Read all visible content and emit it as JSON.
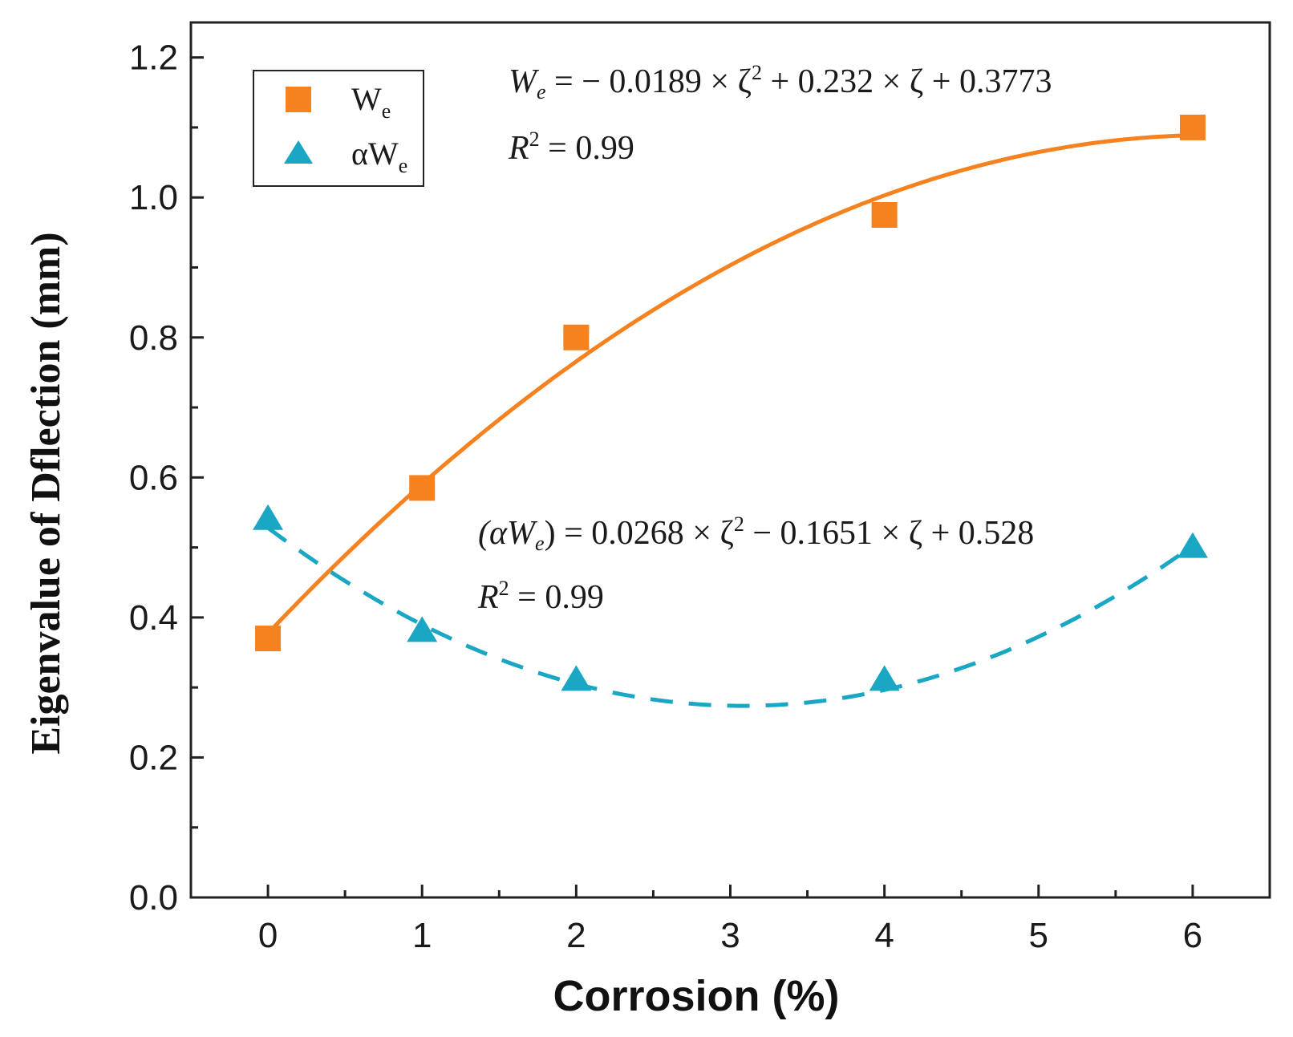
{
  "chart_data": {
    "type": "scatter",
    "title": "",
    "xlabel": "Corrosion (%)",
    "ylabel": "Eigenvalue of Dflection (mm)",
    "xlim": [
      -0.5,
      6.5
    ],
    "ylim": [
      0.0,
      1.25
    ],
    "x_ticks": [
      0,
      1,
      2,
      3,
      4,
      5,
      6
    ],
    "x_tick_labels": [
      "0",
      "1",
      "2",
      "3",
      "4",
      "5",
      "6"
    ],
    "y_ticks": [
      0.0,
      0.2,
      0.4,
      0.6,
      0.8,
      1.0,
      1.2
    ],
    "y_tick_labels": [
      "0.0",
      "0.2",
      "0.4",
      "0.6",
      "0.8",
      "1.0",
      "1.2"
    ],
    "grid": false,
    "legend_position": "top-left",
    "series": [
      {
        "name": "We",
        "legend_main": "W",
        "legend_sub": "e",
        "marker": "square",
        "color": "#f5821f",
        "x": [
          0,
          1,
          2,
          4,
          6
        ],
        "y": [
          0.37,
          0.585,
          0.8,
          0.975,
          1.1
        ],
        "fit": {
          "style": "solid",
          "a": -0.0189,
          "b": 0.232,
          "c": 0.3773
        }
      },
      {
        "name": "αWe",
        "legend_main": "αW",
        "legend_sub": "e",
        "marker": "triangle",
        "color": "#1aa7c4",
        "x": [
          0,
          1,
          2,
          4,
          6
        ],
        "y": [
          0.54,
          0.38,
          0.31,
          0.31,
          0.5
        ],
        "fit": {
          "style": "dashed",
          "a": 0.0268,
          "b": -0.1651,
          "c": 0.528
        }
      }
    ],
    "annotations": [
      {
        "series": "We",
        "equation_lhs": "W",
        "equation_lhs_sub": "e",
        "equation_rhs_1": " = − 0.0189 × ζ",
        "equation_sup": "2",
        "equation_rhs_2": " + 0.232 × ζ + 0.3773",
        "r2_label": "R",
        "r2_sup": "2",
        "r2_value": " = 0.99"
      },
      {
        "series": "αWe",
        "equation_lhs": "(αW",
        "equation_lhs_sub": "e",
        "equation_lhs_close": ")",
        "equation_rhs_1": " = 0.0268 × ζ",
        "equation_sup": "2",
        "equation_rhs_2": " − 0.1651 × ζ + 0.528",
        "r2_label": "R",
        "r2_sup": "2",
        "r2_value": " = 0.99"
      }
    ]
  }
}
